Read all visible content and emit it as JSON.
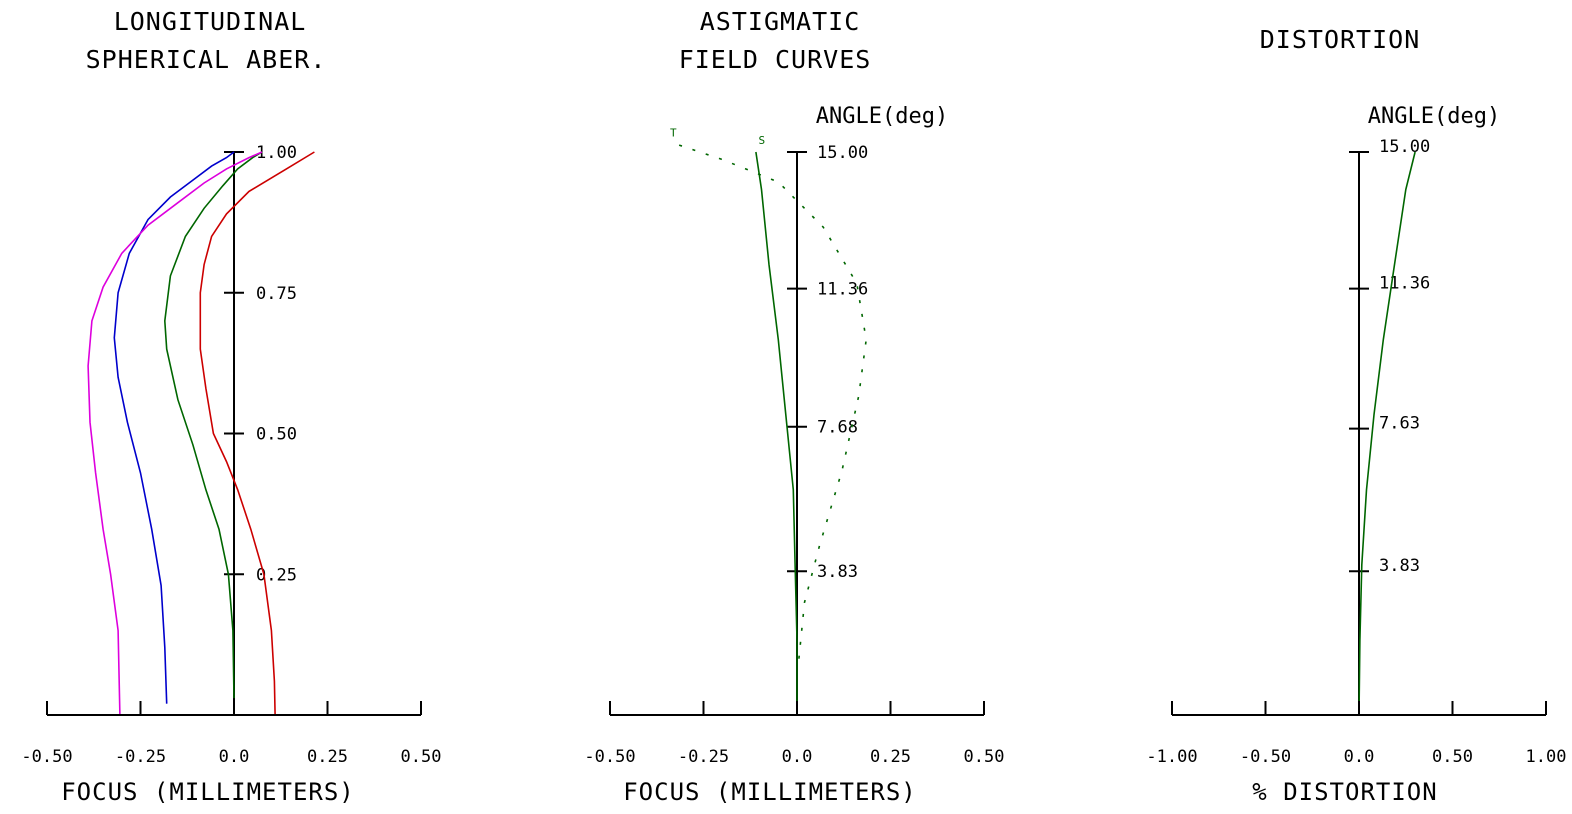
{
  "colors": {
    "red": "#cc0000",
    "green": "#006600",
    "blue": "#0000cc",
    "magenta": "#dd00dd",
    "axis": "#000000"
  },
  "chart_data": [
    {
      "id": "spherical",
      "type": "line",
      "title_lines": [
        "LONGITUDINAL",
        "SPHERICAL ABER."
      ],
      "xlabel": "FOCUS (MILLIMETERS)",
      "xlim": [
        -0.5,
        0.5
      ],
      "xticks": [
        "-0.50",
        "-0.25",
        "0.0",
        "0.25",
        "0.50"
      ],
      "ylim": [
        0,
        1
      ],
      "yaxis_title": "",
      "ytick_values": [
        1.0,
        0.75,
        0.5,
        0.25
      ],
      "ytick_labels": [
        "1.00",
        "0.75",
        "0.50",
        "0.25"
      ],
      "series": [
        {
          "color": "red",
          "style": "solid",
          "x": [
            0.11,
            0.108,
            0.1,
            0.08,
            0.045,
            0.01,
            -0.02,
            -0.055,
            -0.075,
            -0.09,
            -0.09,
            -0.08,
            -0.06,
            -0.02,
            0.04,
            0.14,
            0.215
          ],
          "y": [
            0.0,
            0.06,
            0.15,
            0.25,
            0.33,
            0.4,
            0.45,
            0.5,
            0.58,
            0.65,
            0.75,
            0.8,
            0.85,
            0.89,
            0.93,
            0.97,
            1.0
          ]
        },
        {
          "color": "green",
          "style": "solid",
          "x": [
            0.0,
            -0.003,
            -0.015,
            -0.04,
            -0.075,
            -0.11,
            -0.15,
            -0.18,
            -0.185,
            -0.17,
            -0.13,
            -0.08,
            -0.03,
            0.01,
            0.05,
            0.075
          ],
          "y": [
            0.03,
            0.15,
            0.25,
            0.33,
            0.4,
            0.48,
            0.56,
            0.65,
            0.7,
            0.78,
            0.85,
            0.9,
            0.94,
            0.97,
            0.99,
            1.0
          ]
        },
        {
          "color": "blue",
          "style": "solid",
          "x": [
            -0.18,
            -0.185,
            -0.195,
            -0.22,
            -0.25,
            -0.285,
            -0.31,
            -0.32,
            -0.31,
            -0.28,
            -0.23,
            -0.17,
            -0.11,
            -0.06,
            -0.02,
            0.0
          ],
          "y": [
            0.02,
            0.12,
            0.23,
            0.33,
            0.43,
            0.52,
            0.6,
            0.67,
            0.75,
            0.82,
            0.88,
            0.92,
            0.95,
            0.975,
            0.99,
            1.0
          ]
        },
        {
          "color": "magenta",
          "style": "solid",
          "x": [
            -0.305,
            -0.31,
            -0.33,
            -0.35,
            -0.37,
            -0.385,
            -0.39,
            -0.38,
            -0.35,
            -0.3,
            -0.23,
            -0.15,
            -0.08,
            -0.02,
            0.04,
            0.075
          ],
          "y": [
            0.0,
            0.15,
            0.25,
            0.33,
            0.43,
            0.52,
            0.62,
            0.7,
            0.76,
            0.82,
            0.87,
            0.91,
            0.945,
            0.97,
            0.99,
            1.0
          ]
        }
      ]
    },
    {
      "id": "astigmatic",
      "type": "line",
      "title_lines": [
        "ASTIGMATIC",
        "FIELD CURVES"
      ],
      "xlabel": "FOCUS (MILLIMETERS)",
      "xlim": [
        -0.5,
        0.5
      ],
      "xticks": [
        "-0.50",
        "-0.25",
        "0.0",
        "0.25",
        "0.50"
      ],
      "ylim": [
        0,
        15
      ],
      "yaxis_title": "ANGLE(deg)",
      "ytick_values": [
        15.0,
        11.36,
        7.68,
        3.83
      ],
      "ytick_labels": [
        "15.00",
        "11.36",
        "7.68",
        "3.83"
      ],
      "markers": [
        "T",
        "S"
      ],
      "series": [
        {
          "color": "green",
          "style": "solid",
          "marker": "S",
          "x": [
            0.0,
            0.0,
            -0.005,
            -0.01,
            -0.03,
            -0.05,
            -0.075,
            -0.095,
            -0.11
          ],
          "y": [
            0.0,
            2.0,
            4.0,
            6.0,
            8.0,
            10.0,
            12.0,
            14.0,
            15.0
          ]
        },
        {
          "color": "green",
          "style": "dotted",
          "marker": "T",
          "x": [
            0.005,
            0.02,
            0.06,
            0.12,
            0.165,
            0.185,
            0.16,
            0.07,
            -0.05,
            -0.2,
            -0.32
          ],
          "y": [
            1.5,
            3.0,
            4.5,
            6.5,
            8.5,
            10.0,
            11.5,
            13.0,
            14.2,
            14.8,
            15.2
          ]
        }
      ]
    },
    {
      "id": "distortion",
      "type": "line",
      "title_lines": [
        "DISTORTION"
      ],
      "xlabel": "% DISTORTION",
      "xlim": [
        -1.0,
        1.0
      ],
      "xticks": [
        "-1.00",
        "-0.50",
        "0.0",
        "0.50",
        "1.00"
      ],
      "ylim": [
        0,
        15
      ],
      "yaxis_title": "ANGLE(deg)",
      "ytick_values": [
        15.0,
        11.36,
        7.63,
        3.83
      ],
      "ytick_labels": [
        "15.00",
        "11.36",
        "7.63",
        "3.83"
      ],
      "series": [
        {
          "color": "green",
          "style": "solid",
          "x": [
            0.0,
            0.005,
            0.015,
            0.04,
            0.08,
            0.13,
            0.19,
            0.25,
            0.3
          ],
          "y": [
            0.0,
            2.0,
            4.0,
            6.0,
            8.0,
            10.0,
            12.0,
            14.0,
            15.0
          ]
        }
      ]
    }
  ]
}
